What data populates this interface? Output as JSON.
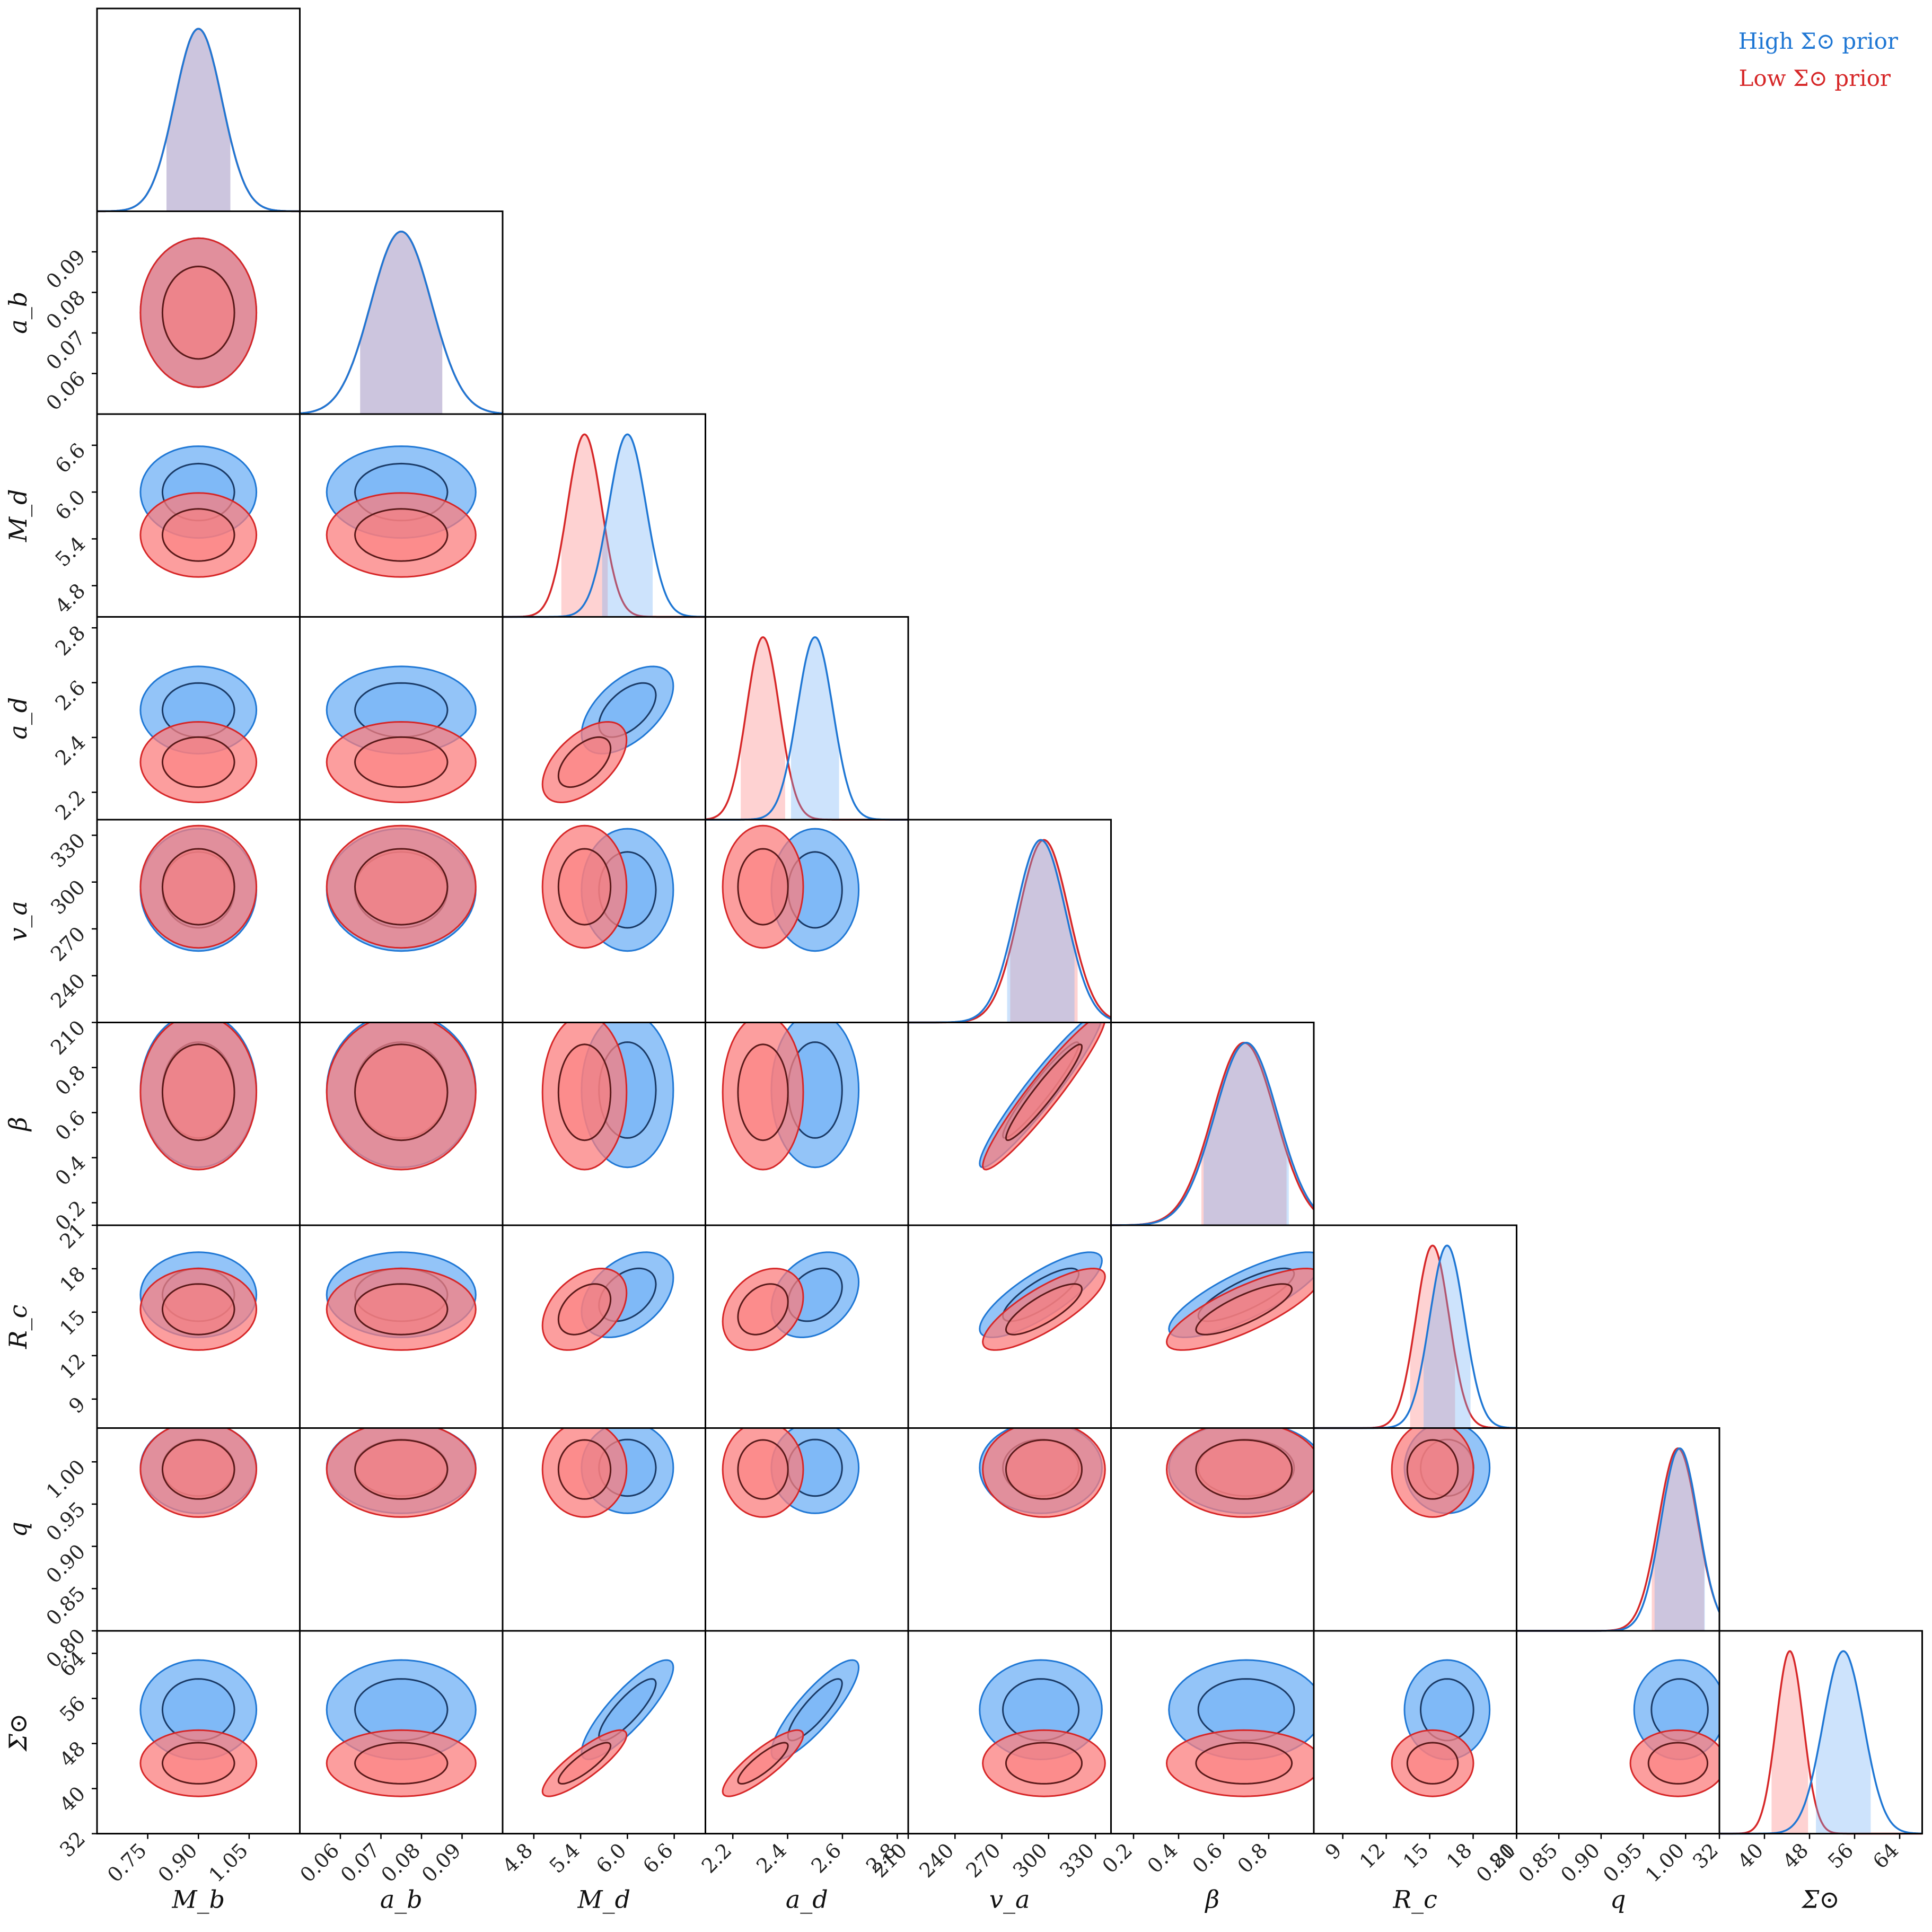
{
  "colors": {
    "high": "#1f77d4",
    "high_fill": "#6fb0f5",
    "low": "#d62728",
    "low_fill": "#fb7d7d",
    "overlap": "#c9b8cc"
  },
  "legend": {
    "position": "top-right",
    "entries": [
      {
        "label": "High Σ⊙ prior",
        "color_key": "high"
      },
      {
        "label": "Low Σ⊙ prior",
        "color_key": "low"
      }
    ]
  },
  "chart_data": {
    "type": "corner",
    "series": [
      {
        "name": "High Σ⊙ prior",
        "color_key": "high"
      },
      {
        "name": "Low Σ⊙ prior",
        "color_key": "low"
      }
    ],
    "parameters": [
      {
        "label": "M_b",
        "ticks": [
          "0.75",
          "0.90",
          "1.05"
        ],
        "range": [
          0.6,
          1.2
        ],
        "high": {
          "mean": 0.9,
          "sd": 0.07
        },
        "low": {
          "mean": 0.9,
          "sd": 0.07
        }
      },
      {
        "label": "a_b",
        "ticks": [
          "0.06",
          "0.07",
          "0.08",
          "0.09"
        ],
        "range": [
          0.05,
          0.1
        ],
        "high": {
          "mean": 0.075,
          "sd": 0.0075
        },
        "low": {
          "mean": 0.075,
          "sd": 0.0075
        }
      },
      {
        "label": "M_d",
        "ticks": [
          "4.8",
          "5.4",
          "6.0",
          "6.6"
        ],
        "range": [
          4.4,
          7.0
        ],
        "high": {
          "mean": 6.0,
          "sd": 0.24
        },
        "low": {
          "mean": 5.45,
          "sd": 0.22
        }
      },
      {
        "label": "a_d",
        "ticks": [
          "2.2",
          "2.4",
          "2.6",
          "2.8"
        ],
        "range": [
          2.1,
          2.84
        ],
        "high": {
          "mean": 2.5,
          "sd": 0.065
        },
        "low": {
          "mean": 2.31,
          "sd": 0.06
        }
      },
      {
        "label": "v_a",
        "ticks": [
          "210",
          "240",
          "270",
          "300",
          "330"
        ],
        "range": [
          210,
          340
        ],
        "high": {
          "mean": 295,
          "sd": 16
        },
        "low": {
          "mean": 297,
          "sd": 16
        }
      },
      {
        "label": "β",
        "ticks": [
          "0.2",
          "0.4",
          "0.6",
          "0.8"
        ],
        "range": [
          0.1,
          1.0
        ],
        "high": {
          "mean": 0.7,
          "sd": 0.14
        },
        "low": {
          "mean": 0.69,
          "sd": 0.14
        }
      },
      {
        "label": "R_c",
        "ticks": [
          "9",
          "12",
          "15",
          "18",
          "21"
        ],
        "range": [
          7,
          21
        ],
        "high": {
          "mean": 16.2,
          "sd": 1.2
        },
        "low": {
          "mean": 15.2,
          "sd": 1.15
        }
      },
      {
        "label": "q",
        "ticks": [
          "0.80",
          "0.85",
          "0.90",
          "0.95",
          "1.00"
        ],
        "range": [
          0.8,
          1.04
        ],
        "high": {
          "mean": 0.993,
          "sd": 0.022
        },
        "low": {
          "mean": 0.991,
          "sd": 0.023
        }
      },
      {
        "label": "Σ⊙",
        "ticks": [
          "32",
          "40",
          "48",
          "56",
          "64"
        ],
        "range": [
          32,
          68
        ],
        "high": {
          "mean": 54,
          "sd": 3.6
        },
        "low": {
          "mean": 44.5,
          "sd": 2.4
        }
      }
    ],
    "correlations": {
      "2-3": 0.55,
      "2-8": 0.85,
      "3-8": 0.85,
      "4-5": 0.95,
      "4-6": 0.8,
      "5-6": 0.8,
      "2-6": 0.4,
      "3-6": 0.3
    },
    "credible_intervals": "shaded band under each 1-D marginal",
    "contour_levels": [
      "68%",
      "95%"
    ]
  }
}
